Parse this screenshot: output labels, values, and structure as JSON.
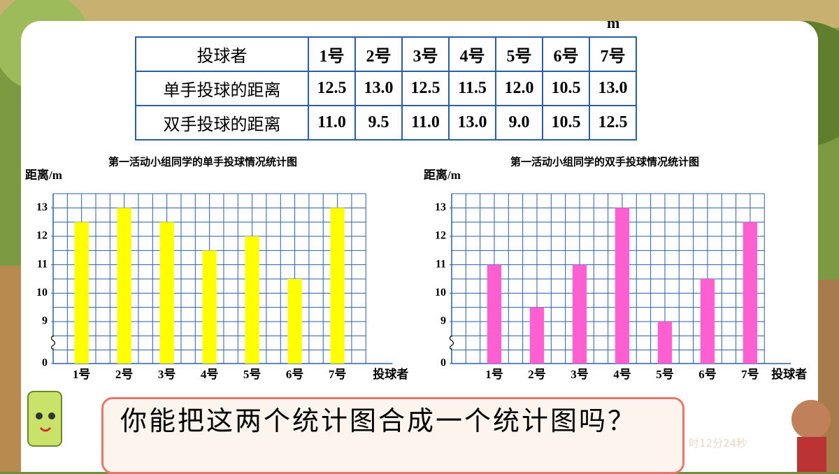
{
  "unit": "m",
  "table": {
    "header": [
      "投球者",
      "1号",
      "2号",
      "3号",
      "4号",
      "5号",
      "6号",
      "7号"
    ],
    "rows": [
      [
        "单手投球的距离",
        "12.5",
        "13.0",
        "12.5",
        "11.5",
        "12.0",
        "10.5",
        "13.0"
      ],
      [
        "双手投球的距离",
        "11.0",
        "9.5",
        "11.0",
        "13.0",
        "9.0",
        "10.5",
        "12.5"
      ]
    ]
  },
  "chart_data": [
    {
      "type": "bar",
      "title": "第一活动小组同学的单手投球情况统计图",
      "y_label": "距离/m",
      "x_label": "投球者",
      "categories": [
        "1号",
        "2号",
        "3号",
        "4号",
        "5号",
        "6号",
        "7号"
      ],
      "values": [
        12.5,
        13.0,
        12.5,
        11.5,
        12.0,
        10.5,
        13.0
      ],
      "color": "#ffff00",
      "ylim": [
        0,
        13.5
      ],
      "yticks": [
        0,
        9,
        10,
        11,
        12,
        13
      ],
      "axis_break": true,
      "grid": true
    },
    {
      "type": "bar",
      "title": "第一活动小组同学的双手投球情况统计图",
      "y_label": "距离/m",
      "x_label": "投球者",
      "categories": [
        "1号",
        "2号",
        "3号",
        "4号",
        "5号",
        "6号",
        "7号"
      ],
      "values": [
        11.0,
        9.5,
        11.0,
        13.0,
        9.0,
        10.5,
        12.5
      ],
      "color": "#ff5fd0",
      "ylim": [
        0,
        13.5
      ],
      "yticks": [
        0,
        9,
        10,
        11,
        12,
        13
      ],
      "axis_break": true,
      "grid": true
    }
  ],
  "question": "你能把这两个统计图合成一个统计图吗？",
  "timer_text": "时12分24秒"
}
